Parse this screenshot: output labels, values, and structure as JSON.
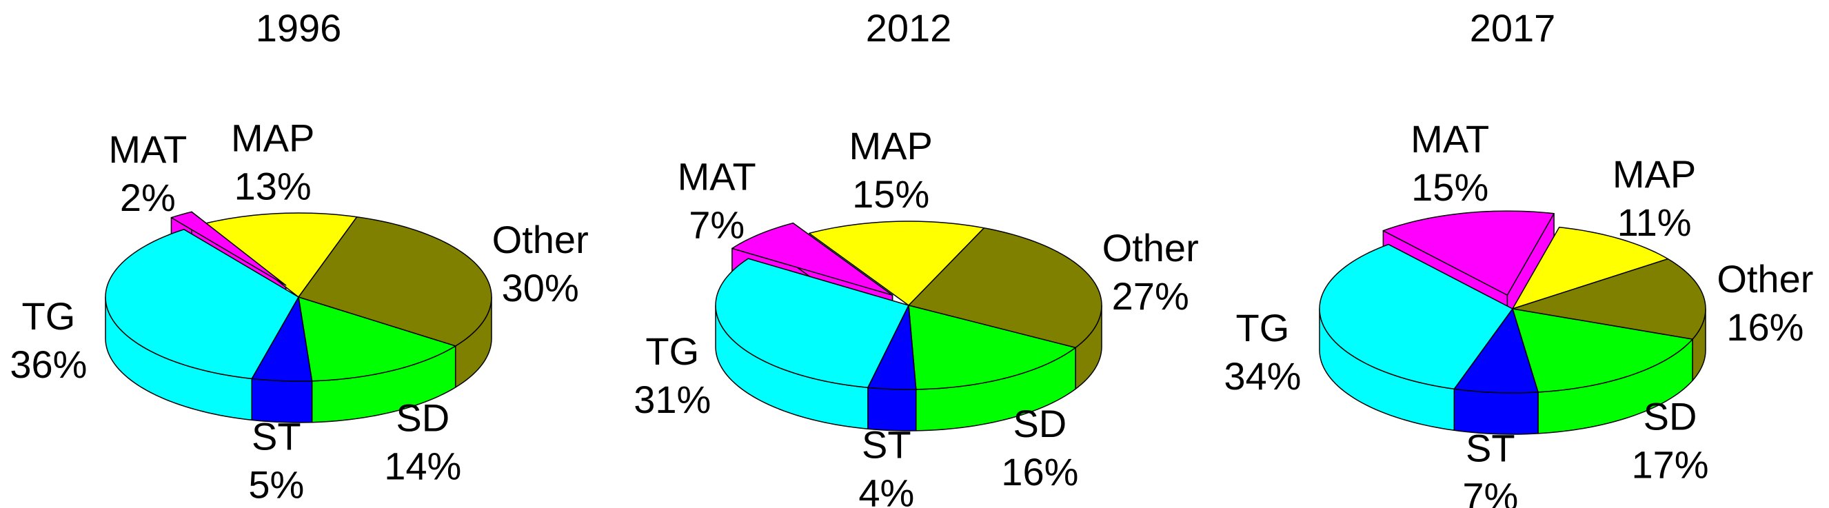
{
  "chart_data": [
    {
      "type": "pie",
      "title": "1996",
      "categories": [
        "MAT",
        "MAP",
        "Other",
        "SD",
        "ST",
        "TG"
      ],
      "values": [
        2,
        13,
        30,
        14,
        5,
        36
      ],
      "value_labels": [
        "2%",
        "13%",
        "30%",
        "14%",
        "5%",
        "36%"
      ],
      "colors": [
        "#ff00ff",
        "#ffff00",
        "#808000",
        "#00ff00",
        "#0000ff",
        "#00ffff"
      ]
    },
    {
      "type": "pie",
      "title": "2012",
      "categories": [
        "MAT",
        "MAP",
        "Other",
        "SD",
        "ST",
        "TG"
      ],
      "values": [
        7,
        15,
        27,
        16,
        4,
        31
      ],
      "value_labels": [
        "7%",
        "15%",
        "27%",
        "16%",
        "4%",
        "31%"
      ],
      "colors": [
        "#ff00ff",
        "#ffff00",
        "#808000",
        "#00ff00",
        "#0000ff",
        "#00ffff"
      ]
    },
    {
      "type": "pie",
      "title": "2017",
      "categories": [
        "MAT",
        "MAP",
        "Other",
        "SD",
        "ST",
        "TG"
      ],
      "values": [
        15,
        11,
        16,
        17,
        7,
        34
      ],
      "value_labels": [
        "15%",
        "11%",
        "16%",
        "17%",
        "7%",
        "34%"
      ],
      "colors": [
        "#ff00ff",
        "#ffff00",
        "#808000",
        "#00ff00",
        "#0000ff",
        "#00ffff"
      ]
    }
  ]
}
